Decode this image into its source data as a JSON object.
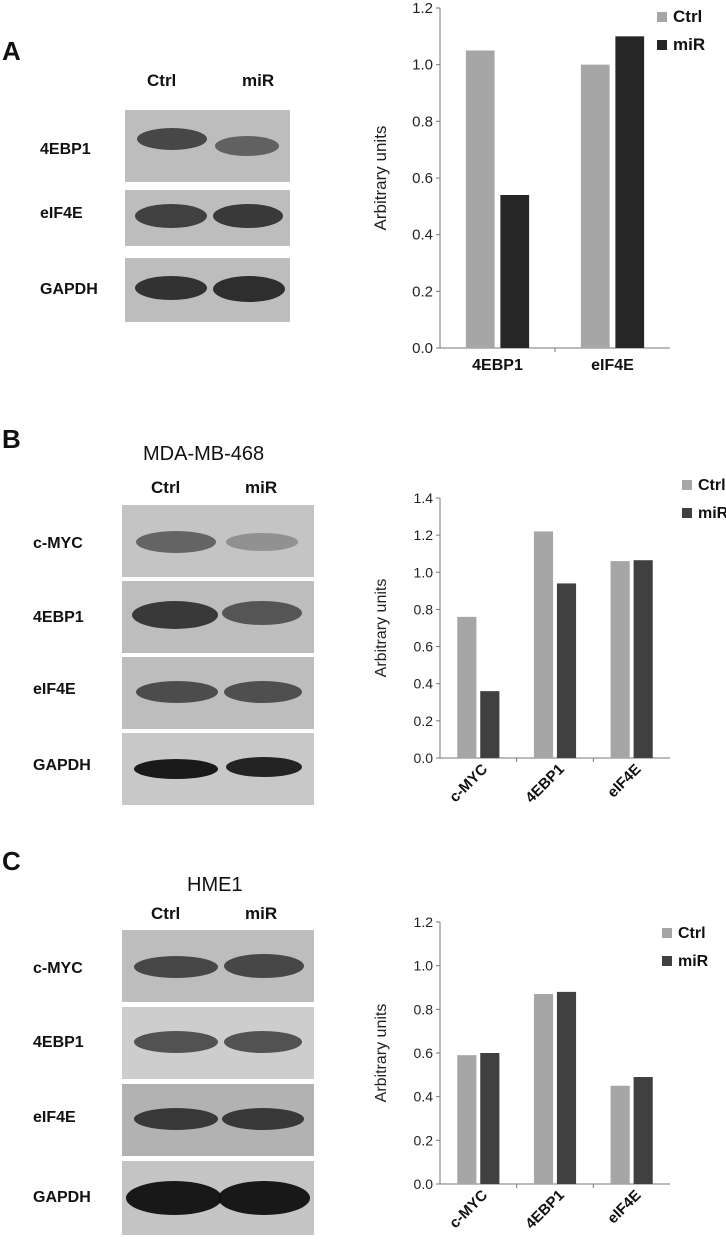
{
  "panels": [
    {
      "letter": "A",
      "cell_line": "",
      "lanes": [
        "Ctrl",
        "miR"
      ],
      "blots": [
        {
          "label": "4EBP1",
          "bands": [
            0.9,
            0.62
          ]
        },
        {
          "label": "eIF4E",
          "bands": [
            0.85,
            0.88
          ]
        },
        {
          "label": "GAPDH",
          "bands": [
            0.9,
            0.92
          ]
        }
      ]
    },
    {
      "letter": "B",
      "cell_line": "MDA-MB-468",
      "lanes": [
        "Ctrl",
        "miR"
      ],
      "blots": [
        {
          "label": "c-MYC",
          "bands": [
            0.7,
            0.35
          ]
        },
        {
          "label": "4EBP1",
          "bands": [
            0.95,
            0.75
          ]
        },
        {
          "label": "eIF4E",
          "bands": [
            0.82,
            0.8
          ]
        },
        {
          "label": "GAPDH",
          "bands": [
            0.95,
            0.9
          ]
        }
      ]
    },
    {
      "letter": "C",
      "cell_line": "HME1",
      "lanes": [
        "Ctrl",
        "miR"
      ],
      "blots": [
        {
          "label": "c-MYC",
          "bands": [
            0.85,
            0.85
          ]
        },
        {
          "label": "4EBP1",
          "bands": [
            0.82,
            0.82
          ]
        },
        {
          "label": "eIF4E",
          "bands": [
            0.9,
            0.9
          ]
        },
        {
          "label": "GAPDH",
          "bands": [
            1.0,
            1.0
          ]
        }
      ]
    }
  ],
  "chart_data": [
    {
      "type": "bar",
      "categories": [
        "4EBP1",
        "eIF4E"
      ],
      "series": [
        {
          "name": "Ctrl",
          "values": [
            1.05,
            1.0
          ],
          "color": "#a6a6a6"
        },
        {
          "name": "miR",
          "values": [
            0.54,
            1.1
          ],
          "color": "#262626"
        }
      ],
      "ylabel": "Arbitrary units",
      "ylim": [
        0,
        1.2
      ],
      "yticks": [
        0.0,
        0.2,
        0.4,
        0.6,
        0.8,
        1.0,
        1.2
      ],
      "ytick_labels": [
        "0.0",
        "0.2",
        "0.4",
        "0.6",
        "0.8",
        "1.0",
        "1.2"
      ],
      "rotated_xticks": false,
      "grid": false,
      "legend": "top-right"
    },
    {
      "type": "bar",
      "categories": [
        "c-MYC",
        "4EBP1",
        "eIF4E"
      ],
      "series": [
        {
          "name": "Ctrl",
          "values": [
            0.76,
            1.22,
            1.06
          ],
          "color": "#a6a6a6"
        },
        {
          "name": "miR",
          "values": [
            0.36,
            0.94,
            1.065
          ],
          "color": "#404040"
        }
      ],
      "ylabel": "Arbitrary units",
      "ylim": [
        0,
        1.4
      ],
      "yticks": [
        0.0,
        0.2,
        0.4,
        0.6,
        0.8,
        1.0,
        1.2,
        1.4
      ],
      "ytick_labels": [
        "0.0",
        "0.2",
        "0.4",
        "0.6",
        "0.8",
        "1.0",
        "1.2",
        "1.4"
      ],
      "rotated_xticks": true,
      "grid": false,
      "legend": "top-right"
    },
    {
      "type": "bar",
      "categories": [
        "c-MYC",
        "4EBP1",
        "eIF4E"
      ],
      "series": [
        {
          "name": "Ctrl",
          "values": [
            0.59,
            0.87,
            0.45
          ],
          "color": "#a6a6a6"
        },
        {
          "name": "miR",
          "values": [
            0.6,
            0.88,
            0.49
          ],
          "color": "#404040"
        }
      ],
      "ylabel": "Arbitrary units",
      "ylim": [
        0,
        1.2
      ],
      "yticks": [
        0.0,
        0.2,
        0.4,
        0.6,
        0.8,
        1.0,
        1.2
      ],
      "ytick_labels": [
        "0.0",
        "0.2",
        "0.4",
        "0.6",
        "0.8",
        "1.0",
        "1.2"
      ],
      "rotated_xticks": true,
      "grid": false,
      "legend": "top-right"
    }
  ]
}
